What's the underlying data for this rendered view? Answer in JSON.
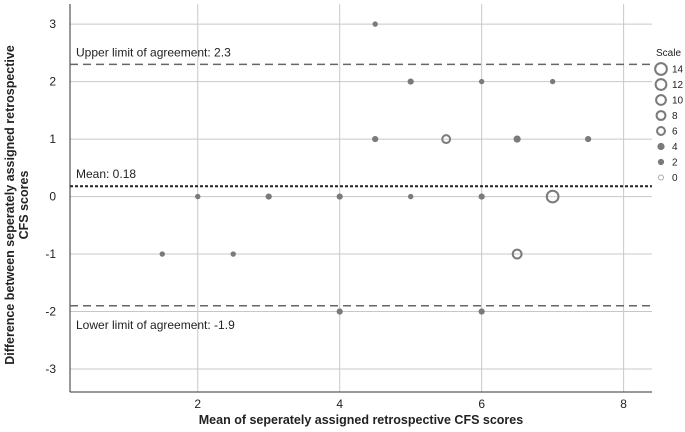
{
  "chart_data": {
    "type": "scatter",
    "xlabel": "Mean of seperately assigned retrospective CFS scores",
    "ylabel_lines": [
      "Difference between seperately assigned retrospective",
      "CFS scores"
    ],
    "xlim": [
      0.2,
      8.4
    ],
    "ylim": [
      -3.4,
      3.35
    ],
    "x_ticks": [
      2,
      4,
      6,
      8
    ],
    "y_ticks": [
      3,
      2,
      1,
      0,
      -1,
      -2,
      -3
    ],
    "x_gridlines": [
      2,
      4,
      6,
      8
    ],
    "grid": true,
    "reference_lines": [
      {
        "label": "Upper limit of agreement: 2.3",
        "y": 2.3,
        "style": "dashed"
      },
      {
        "label": "Mean: 0.18",
        "y": 0.18,
        "style": "dotted"
      },
      {
        "label": "Lower limit of agreement: -1.9",
        "y": -1.9,
        "style": "dashed"
      }
    ],
    "points": [
      {
        "x": 4.5,
        "y": 3,
        "count": 1
      },
      {
        "x": 5.0,
        "y": 2,
        "count": 2
      },
      {
        "x": 6.0,
        "y": 2,
        "count": 1
      },
      {
        "x": 7.0,
        "y": 2,
        "count": 1
      },
      {
        "x": 4.5,
        "y": 1,
        "count": 2
      },
      {
        "x": 5.5,
        "y": 1,
        "count": 6
      },
      {
        "x": 6.5,
        "y": 1,
        "count": 3
      },
      {
        "x": 7.5,
        "y": 1,
        "count": 2
      },
      {
        "x": 2.0,
        "y": 0,
        "count": 1
      },
      {
        "x": 3.0,
        "y": 0,
        "count": 2
      },
      {
        "x": 4.0,
        "y": 0,
        "count": 2
      },
      {
        "x": 5.0,
        "y": 0,
        "count": 1
      },
      {
        "x": 6.0,
        "y": 0,
        "count": 2
      },
      {
        "x": 7.0,
        "y": 0,
        "count": 14
      },
      {
        "x": 1.5,
        "y": -1,
        "count": 1
      },
      {
        "x": 2.5,
        "y": -1,
        "count": 1
      },
      {
        "x": 6.5,
        "y": -1,
        "count": 8
      },
      {
        "x": 4.0,
        "y": -2,
        "count": 2
      },
      {
        "x": 6.0,
        "y": -2,
        "count": 2
      }
    ],
    "legend": {
      "title": "Scale",
      "placement": "right",
      "values": [
        14,
        12,
        10,
        8,
        6,
        4,
        2,
        0
      ]
    },
    "colors": {
      "marker": "#7a7a7a",
      "grid": "#c8c8c8",
      "axis": "#333333",
      "reference": "#666666",
      "mean": "#222222"
    }
  }
}
